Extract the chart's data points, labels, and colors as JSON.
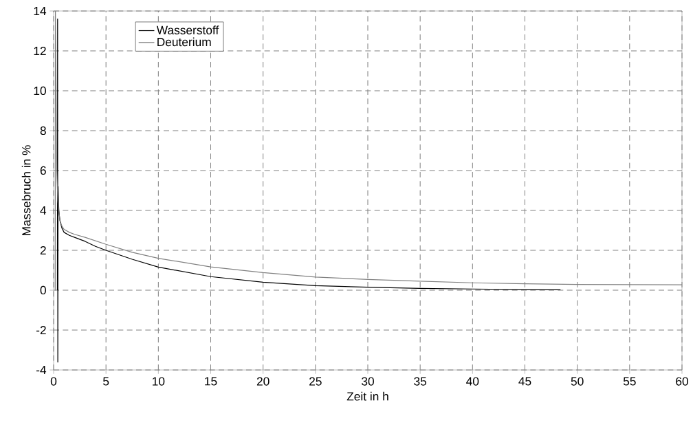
{
  "chart_data": {
    "type": "line",
    "xlabel": "Zeit in h",
    "ylabel": "Massebruch in %",
    "xlim": [
      0,
      60
    ],
    "ylim": [
      -4,
      14
    ],
    "xticks": [
      0,
      5,
      10,
      15,
      20,
      25,
      30,
      35,
      40,
      45,
      50,
      55,
      60
    ],
    "yticks": [
      -4,
      -2,
      0,
      2,
      4,
      6,
      8,
      10,
      12,
      14
    ],
    "grid": true,
    "legend": "top left",
    "line_style": "solid",
    "marker": "none",
    "series": [
      {
        "name": "Wasserstoff",
        "color": "#000000",
        "x": [
          0.36,
          0.38,
          0.4,
          0.42,
          0.5,
          0.6,
          0.8,
          1,
          1.5,
          2,
          3,
          4,
          5,
          7.5,
          10,
          15,
          20,
          25,
          30,
          35,
          40,
          45,
          48.4
        ],
        "values": [
          0,
          13.6,
          -3.6,
          5.2,
          4.0,
          3.5,
          3.1,
          2.9,
          2.75,
          2.65,
          2.45,
          2.2,
          2.0,
          1.55,
          1.16,
          0.68,
          0.4,
          0.23,
          0.15,
          0.09,
          0.06,
          0.03,
          0.02
        ]
      },
      {
        "name": "Deuterium",
        "color": "#808080",
        "x": [
          0.12,
          0.15,
          0.17,
          0.3,
          0.4,
          0.6,
          0.8,
          1,
          1.5,
          2,
          3,
          5,
          7.5,
          10,
          15,
          20,
          25,
          30,
          35,
          40,
          45,
          50,
          55,
          60
        ],
        "values": [
          0,
          0,
          14,
          6,
          4.5,
          3.5,
          3.2,
          3.05,
          2.9,
          2.8,
          2.65,
          2.3,
          1.9,
          1.6,
          1.17,
          0.88,
          0.66,
          0.54,
          0.45,
          0.37,
          0.32,
          0.29,
          0.28,
          0.27
        ]
      }
    ]
  }
}
